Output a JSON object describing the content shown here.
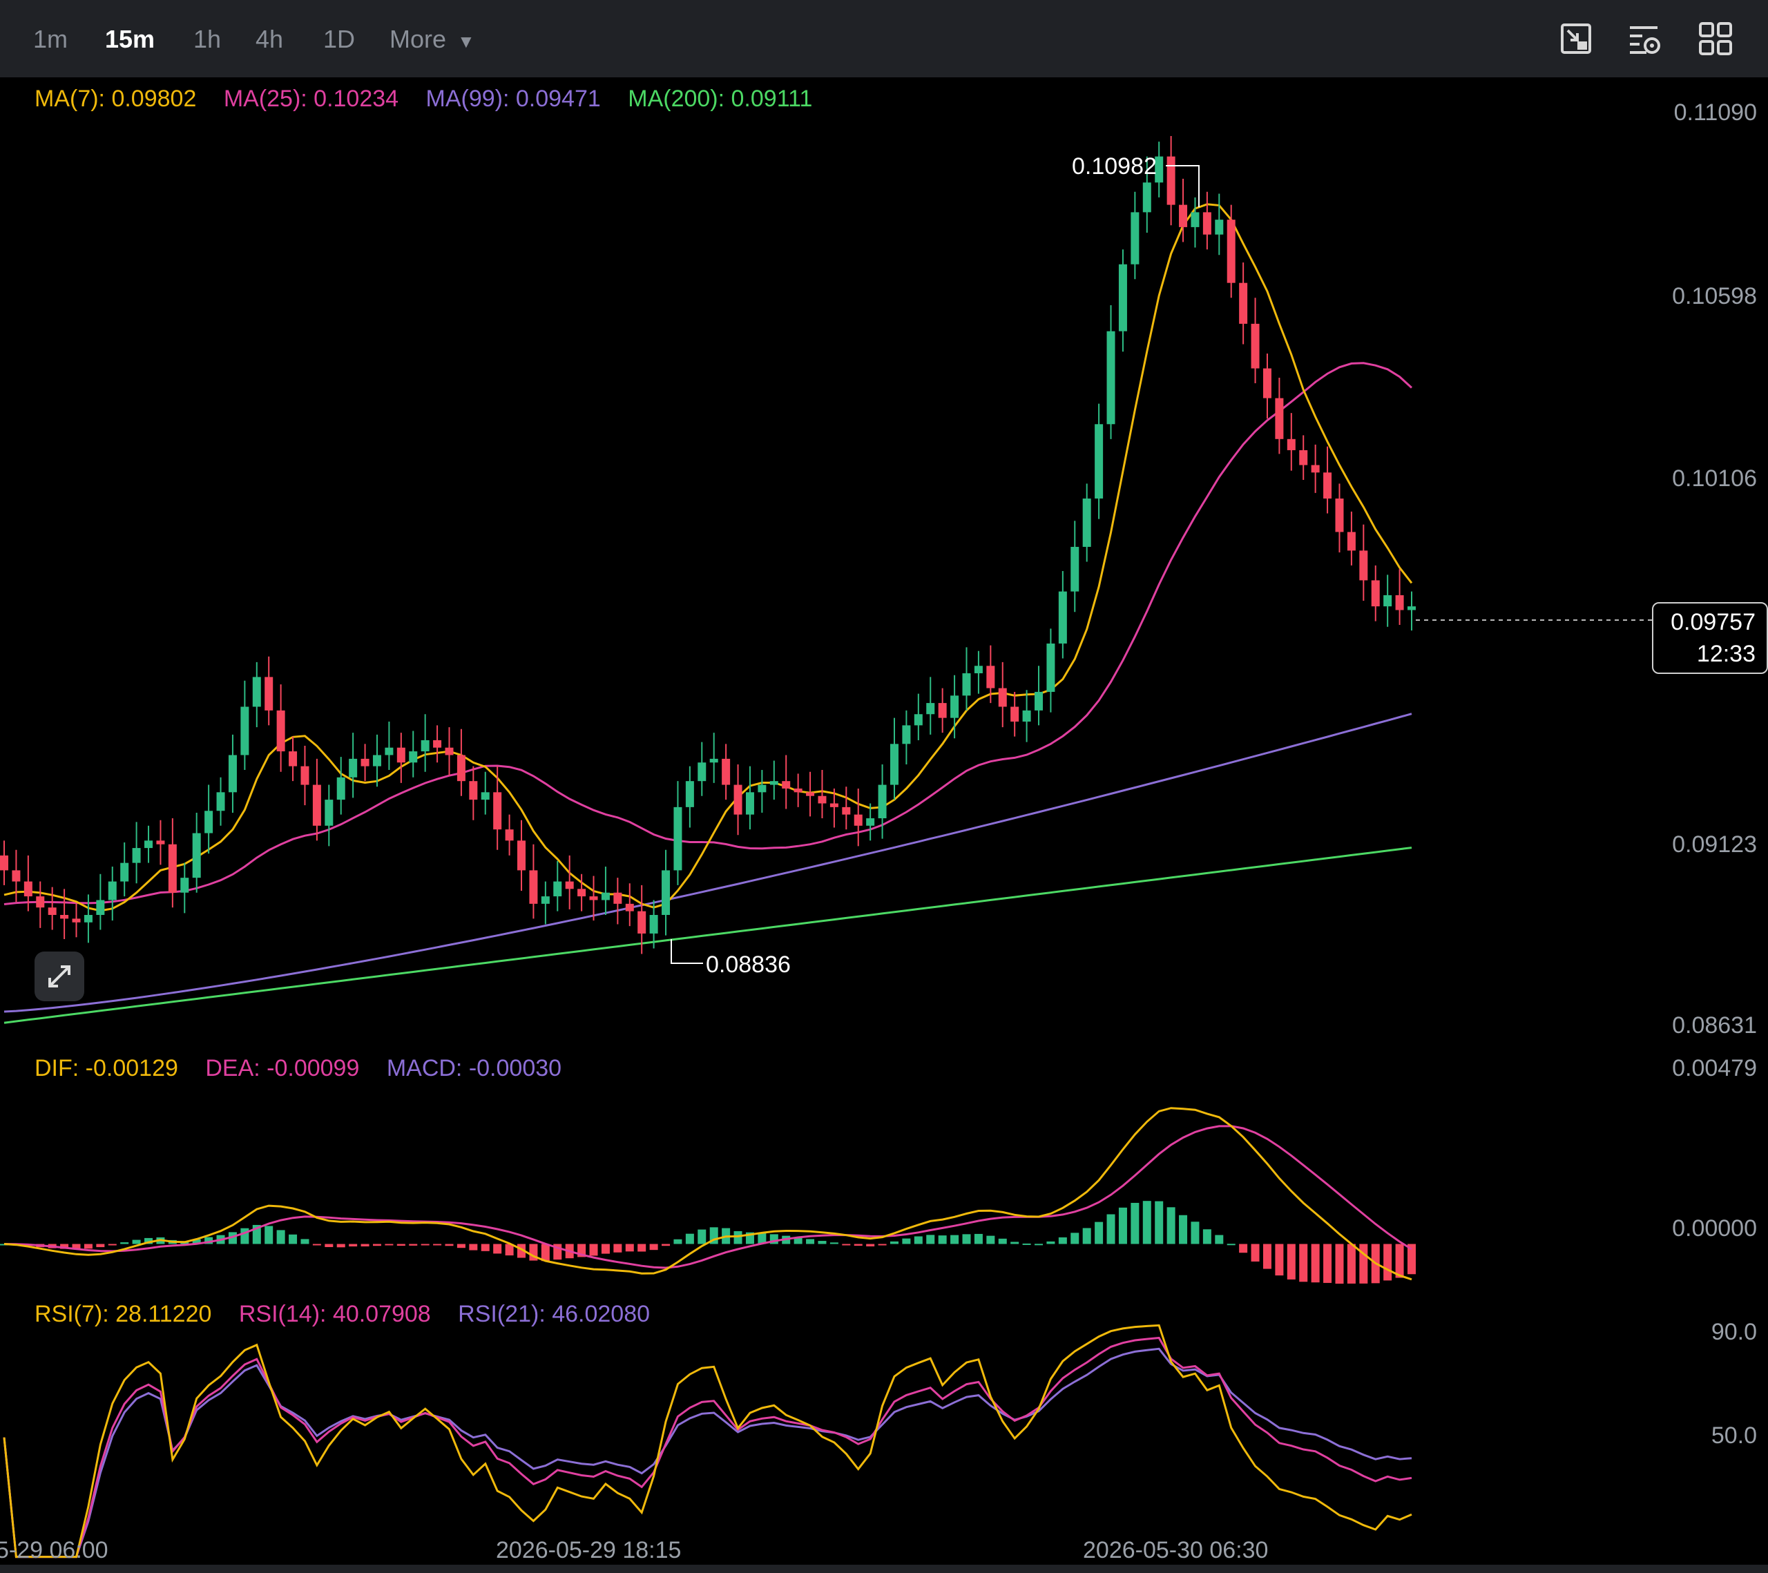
{
  "toolbar": {
    "timeframes": [
      {
        "label": "1m",
        "active": false
      },
      {
        "label": "15m",
        "active": true
      },
      {
        "label": "1h",
        "active": false
      },
      {
        "label": "4h",
        "active": false
      },
      {
        "label": "1D",
        "active": false
      }
    ],
    "more_label": "More",
    "icons": [
      "chart-switch-icon",
      "indicator-settings-icon",
      "layout-grid-icon"
    ]
  },
  "ma_legend": {
    "ma7": "MA(7): 0.09802",
    "ma25": "MA(25): 0.10234",
    "ma99": "MA(99): 0.09471",
    "ma200": "MA(200): 0.09111"
  },
  "macd_legend": {
    "dif": "DIF: -0.00129",
    "dea": "DEA: -0.00099",
    "macd": "MACD: -0.00030"
  },
  "rsi_legend": {
    "rsi7": "RSI(7): 28.11220",
    "rsi14": "RSI(14): 40.07908",
    "rsi21": "RSI(21): 46.02080"
  },
  "price_axis": [
    "0.11090",
    "0.10598",
    "0.10106",
    "0.09123",
    "0.08631"
  ],
  "macd_axis": [
    "0.00479",
    "0.00000"
  ],
  "rsi_axis": [
    "90.0",
    "50.0"
  ],
  "current_price": {
    "price": "0.09757",
    "countdown": "12:33"
  },
  "high_marker": "0.10982",
  "low_marker": "0.08836",
  "time_axis": [
    "5-29 06:00",
    "2026-05-29 18:15",
    "2026-05-30 06:30"
  ],
  "colors": {
    "up": "#2ebd85",
    "down": "#f6465d",
    "ma7": "#f0b90b",
    "ma25": "#e040a0",
    "ma99": "#8c6fd6",
    "ma200": "#4cd964",
    "dif": "#f0b90b",
    "dea": "#e040a0",
    "macd_label": "#8c6fd6",
    "rsi7": "#f0b90b",
    "rsi14": "#e040a0",
    "rsi21": "#8c6fd6"
  },
  "chart_data": {
    "type": "candlestick",
    "interval": "15m",
    "price_range": [
      0.08631,
      0.1109
    ],
    "high": 0.10982,
    "low": 0.08836,
    "last_price": 0.09757,
    "close_series": [
      0.0905,
      0.0902,
      0.0898,
      0.0895,
      0.0893,
      0.0892,
      0.0891,
      0.0893,
      0.0897,
      0.0902,
      0.0907,
      0.0911,
      0.0913,
      0.0912,
      0.0899,
      0.0903,
      0.0915,
      0.0921,
      0.0926,
      0.0936,
      0.0949,
      0.0957,
      0.0948,
      0.0937,
      0.0933,
      0.0928,
      0.0917,
      0.0924,
      0.093,
      0.0935,
      0.0933,
      0.0936,
      0.0938,
      0.0934,
      0.0937,
      0.094,
      0.0938,
      0.0936,
      0.0929,
      0.0924,
      0.0926,
      0.0916,
      0.0913,
      0.0905,
      0.0896,
      0.0898,
      0.0902,
      0.09,
      0.0898,
      0.0897,
      0.0899,
      0.0896,
      0.0894,
      0.0888,
      0.0893,
      0.0905,
      0.0922,
      0.0929,
      0.0934,
      0.0935,
      0.0928,
      0.092,
      0.0926,
      0.0928,
      0.0929,
      0.0927,
      0.0926,
      0.0925,
      0.0923,
      0.0922,
      0.092,
      0.0917,
      0.0919,
      0.0928,
      0.0939,
      0.0944,
      0.0947,
      0.095,
      0.0946,
      0.0952,
      0.0958,
      0.096,
      0.0954,
      0.0949,
      0.0945,
      0.0948,
      0.0953,
      0.0966,
      0.098,
      0.0992,
      0.1005,
      0.1025,
      0.105,
      0.1068,
      0.1082,
      0.109,
      0.1097,
      0.1084,
      0.1078,
      0.1082,
      0.1076,
      0.108,
      0.1063,
      0.1052,
      0.104,
      0.1032,
      0.1021,
      0.1018,
      0.1014,
      0.1012,
      0.1005,
      0.0996,
      0.0991,
      0.0983,
      0.0976,
      0.0979,
      0.0975,
      0.0976
    ],
    "ma": {
      "ma7": {
        "period": 7,
        "value": 0.09802
      },
      "ma25": {
        "period": 25,
        "value": 0.10234
      },
      "ma99": {
        "period": 99,
        "value": 0.09471
      },
      "ma200": {
        "period": 200,
        "value": 0.09111
      }
    },
    "macd": {
      "dif": -0.00129,
      "dea": -0.00099,
      "macd": -0.0003,
      "range": [
        -0.0012,
        0.00479
      ]
    },
    "rsi": {
      "rsi7": 28.1122,
      "rsi14": 40.07908,
      "rsi21": 46.0208,
      "levels": [
        90.0,
        50.0
      ]
    }
  }
}
